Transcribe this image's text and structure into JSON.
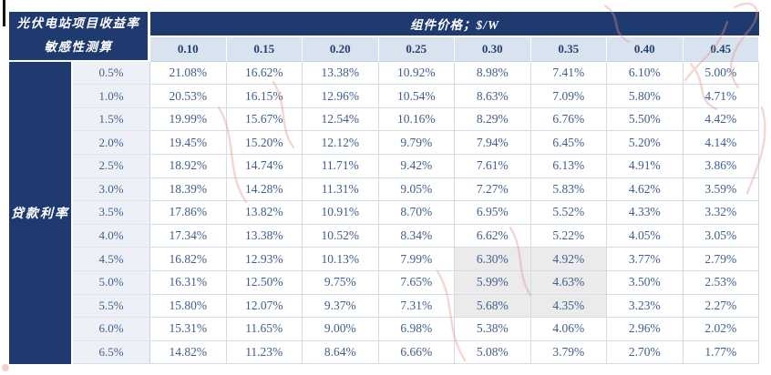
{
  "table": {
    "corner_title_line1": "光伏电站项目收益率",
    "corner_title_line2": "敏感性测算",
    "top_header": "组件价格；$/W",
    "row_axis_label": "贷款利率",
    "col_headers": [
      "0.10",
      "0.15",
      "0.20",
      "0.25",
      "0.30",
      "0.35",
      "0.40",
      "0.45"
    ],
    "rows": [
      {
        "label": "0.5%",
        "values": [
          "21.08%",
          "16.62%",
          "13.38%",
          "10.92%",
          "8.98%",
          "7.41%",
          "6.10%",
          "5.00%"
        ]
      },
      {
        "label": "1.0%",
        "values": [
          "20.53%",
          "16.15%",
          "12.96%",
          "10.54%",
          "8.63%",
          "7.09%",
          "5.80%",
          "4.71%"
        ]
      },
      {
        "label": "1.5%",
        "values": [
          "19.99%",
          "15.67%",
          "12.54%",
          "10.16%",
          "8.29%",
          "6.76%",
          "5.50%",
          "4.42%"
        ]
      },
      {
        "label": "2.0%",
        "values": [
          "19.45%",
          "15.20%",
          "12.12%",
          "9.79%",
          "7.94%",
          "6.45%",
          "5.20%",
          "4.14%"
        ]
      },
      {
        "label": "2.5%",
        "values": [
          "18.92%",
          "14.74%",
          "11.71%",
          "9.42%",
          "7.61%",
          "6.13%",
          "4.91%",
          "3.86%"
        ]
      },
      {
        "label": "3.0%",
        "values": [
          "18.39%",
          "14.28%",
          "11.31%",
          "9.05%",
          "7.27%",
          "5.83%",
          "4.62%",
          "3.59%"
        ]
      },
      {
        "label": "3.5%",
        "values": [
          "17.86%",
          "13.82%",
          "10.91%",
          "8.70%",
          "6.95%",
          "5.52%",
          "4.33%",
          "3.32%"
        ]
      },
      {
        "label": "4.0%",
        "values": [
          "17.34%",
          "13.38%",
          "10.52%",
          "8.34%",
          "6.62%",
          "5.22%",
          "4.05%",
          "3.05%"
        ]
      },
      {
        "label": "4.5%",
        "values": [
          "16.82%",
          "12.93%",
          "10.13%",
          "7.99%",
          "6.30%",
          "4.92%",
          "3.77%",
          "2.79%"
        ]
      },
      {
        "label": "5.0%",
        "values": [
          "16.31%",
          "12.50%",
          "9.75%",
          "7.65%",
          "5.99%",
          "4.63%",
          "3.50%",
          "2.53%"
        ]
      },
      {
        "label": "5.5%",
        "values": [
          "15.80%",
          "12.07%",
          "9.37%",
          "7.31%",
          "5.68%",
          "4.35%",
          "3.23%",
          "2.27%"
        ]
      },
      {
        "label": "6.0%",
        "values": [
          "15.31%",
          "11.65%",
          "9.00%",
          "6.98%",
          "5.38%",
          "4.06%",
          "2.96%",
          "2.02%"
        ]
      },
      {
        "label": "6.5%",
        "values": [
          "14.82%",
          "11.23%",
          "8.64%",
          "6.66%",
          "5.08%",
          "3.79%",
          "2.70%",
          "1.77%"
        ]
      }
    ],
    "highlight_rows": [
      8,
      9,
      10
    ],
    "highlight_cols": [
      4,
      5
    ],
    "highlight_row_labels": [
      "4.5%",
      "5.0%",
      "5.5%"
    ],
    "highlight_col_headers": [
      "0.30",
      "0.35"
    ]
  },
  "colors": {
    "header_navy": "#1F3A6E",
    "colhead_bg": "#D9E2EF",
    "rowlabel_bg": "#EDF1F7",
    "data_text": "#3E5E92",
    "highlight_bg": "#EBEBEB",
    "grid_line": "#D3DCE9",
    "watermark_pink": "#E2948C"
  }
}
